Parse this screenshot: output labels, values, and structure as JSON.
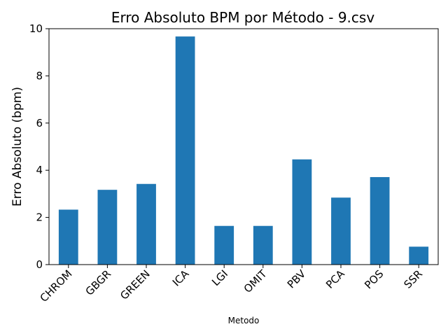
{
  "chart_data": {
    "type": "bar",
    "title": "Erro Absoluto BPM por Método - 9.csv",
    "xlabel": "Metodo",
    "ylabel": "Erro Absoluto (bpm)",
    "categories": [
      "CHROM",
      "GBGR",
      "GREEN",
      "ICA",
      "LGI",
      "OMIT",
      "PBV",
      "PCA",
      "POS",
      "SSR"
    ],
    "values": [
      2.33,
      3.17,
      3.42,
      9.67,
      1.64,
      1.64,
      4.46,
      2.84,
      3.71,
      0.76
    ],
    "ylim": [
      0,
      10
    ],
    "yticks": [
      0,
      2,
      4,
      6,
      8,
      10
    ],
    "bar_color": "#1f77b4",
    "grid": false,
    "legend": "none"
  }
}
